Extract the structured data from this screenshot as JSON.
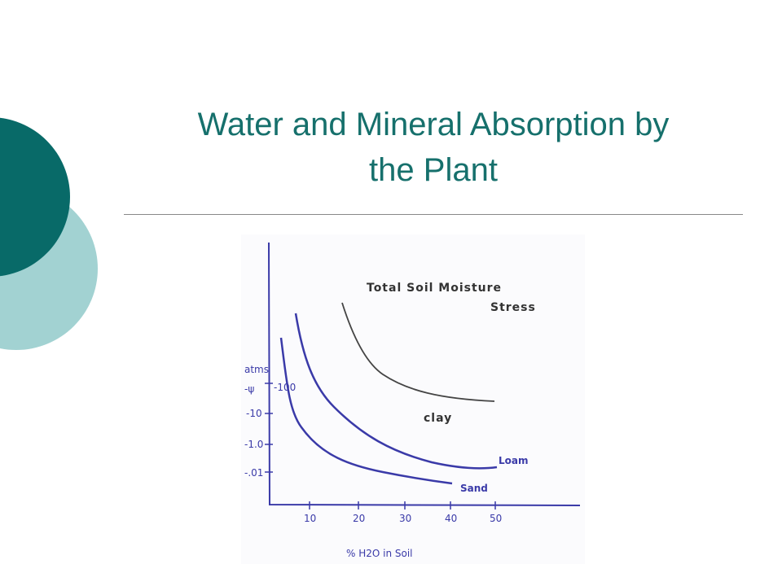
{
  "slide": {
    "title_lines": [
      "Water and Mineral  Absorption by",
      "the Plant"
    ]
  },
  "figure": {
    "title_lines": [
      "Total Soil Moisture",
      "Stress"
    ],
    "y_label": [
      "atms",
      "-ψ"
    ],
    "y_ticks": [
      "-100",
      "-10",
      "-1.0",
      "-.01"
    ],
    "x_ticks": [
      "10",
      "20",
      "30",
      "40",
      "50"
    ],
    "x_label": "% H2O in Soil",
    "curve_labels": [
      "clay",
      "Loam",
      "Sand"
    ]
  }
}
